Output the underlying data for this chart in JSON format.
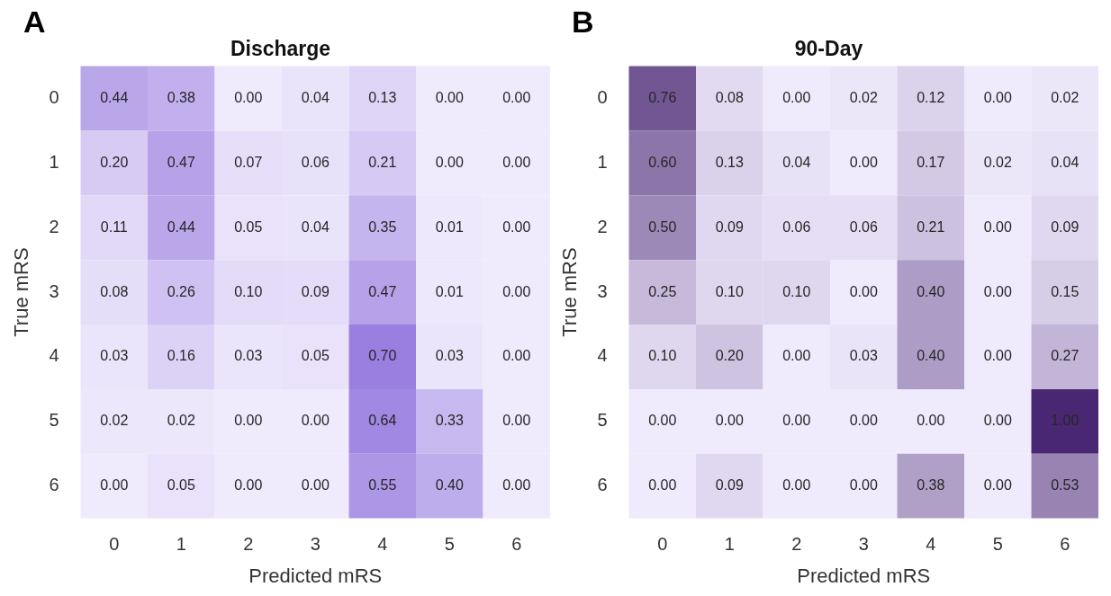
{
  "chart_data": [
    {
      "type": "heatmap",
      "title": "Discharge",
      "xlabel": "Predicted mRS",
      "ylabel": "True mRS",
      "annotations": [
        "A"
      ],
      "color": "#9a7fe0",
      "categories": [
        "0",
        "1",
        "2",
        "3",
        "4",
        "5",
        "6"
      ],
      "y_categories": [
        "0",
        "1",
        "2",
        "3",
        "4",
        "5",
        "6"
      ],
      "cells": [
        [
          0.44,
          0.38,
          0.0,
          0.04,
          0.13,
          0.0,
          0.0
        ],
        [
          0.2,
          0.47,
          0.07,
          0.06,
          0.21,
          0.0,
          0.0
        ],
        [
          0.11,
          0.44,
          0.05,
          0.04,
          0.35,
          0.01,
          0.0
        ],
        [
          0.08,
          0.26,
          0.1,
          0.09,
          0.47,
          0.01,
          0.0
        ],
        [
          0.03,
          0.16,
          0.03,
          0.05,
          0.7,
          0.03,
          0.0
        ],
        [
          0.02,
          0.02,
          0.0,
          0.0,
          0.64,
          0.33,
          0.0
        ],
        [
          0.0,
          0.05,
          0.0,
          0.0,
          0.55,
          0.4,
          0.0
        ]
      ],
      "cell_labels": [
        [
          "0.44",
          "0.38",
          "0.00",
          "0.04",
          "0.13",
          "0.00",
          "0.00"
        ],
        [
          "0.20",
          "0.47",
          "0.07",
          "0.06",
          "0.21",
          "0.00",
          "0.00"
        ],
        [
          "0.11",
          "0.44",
          "0.05",
          "0.04",
          "0.35",
          "0.01",
          "0.00"
        ],
        [
          "0.08",
          "0.26",
          "0.10",
          "0.09",
          "0.47",
          "0.01",
          "0.00"
        ],
        [
          "0.03",
          "0.16",
          "0.03",
          "0.05",
          "0.70",
          "0.03",
          "0.00"
        ],
        [
          "0.02",
          "0.02",
          "0.00",
          "0.00",
          "0.64",
          "0.33",
          "0.00"
        ],
        [
          "0.00",
          "0.05",
          "0.00",
          "0.00",
          "0.55",
          "0.40",
          "0.00"
        ]
      ]
    },
    {
      "type": "heatmap",
      "title": "90-Day",
      "xlabel": "Predicted mRS",
      "ylabel": "True mRS",
      "annotations": [
        "B"
      ],
      "color": "#4a2772",
      "categories": [
        "0",
        "1",
        "2",
        "3",
        "4",
        "5",
        "6"
      ],
      "y_categories": [
        "0",
        "1",
        "2",
        "3",
        "4",
        "5",
        "6"
      ],
      "cells": [
        [
          0.76,
          0.08,
          0.0,
          0.02,
          0.12,
          0.0,
          0.02
        ],
        [
          0.6,
          0.13,
          0.04,
          0.0,
          0.17,
          0.02,
          0.04
        ],
        [
          0.5,
          0.09,
          0.06,
          0.06,
          0.21,
          0.0,
          0.09
        ],
        [
          0.25,
          0.1,
          0.1,
          0.0,
          0.4,
          0.0,
          0.15
        ],
        [
          0.1,
          0.2,
          0.0,
          0.03,
          0.4,
          0.0,
          0.27
        ],
        [
          0.0,
          0.0,
          0.0,
          0.0,
          0.0,
          0.0,
          1.0
        ],
        [
          0.0,
          0.09,
          0.0,
          0.0,
          0.38,
          0.0,
          0.53
        ]
      ],
      "cell_labels": [
        [
          "0.76",
          "0.08",
          "0.00",
          "0.02",
          "0.12",
          "0.00",
          "0.02"
        ],
        [
          "0.60",
          "0.13",
          "0.04",
          "0.00",
          "0.17",
          "0.02",
          "0.04"
        ],
        [
          "0.50",
          "0.09",
          "0.06",
          "0.06",
          "0.21",
          "0.00",
          "0.09"
        ],
        [
          "0.25",
          "0.10",
          "0.10",
          "0.00",
          "0.40",
          "0.00",
          "0.15"
        ],
        [
          "0.10",
          "0.20",
          "0.00",
          "0.03",
          "0.40",
          "0.00",
          "0.27"
        ],
        [
          "0.00",
          "0.00",
          "0.00",
          "0.00",
          "0.00",
          "0.00",
          "1.00"
        ],
        [
          "0.00",
          "0.09",
          "0.00",
          "0.00",
          "0.38",
          "0.00",
          "0.53"
        ]
      ]
    }
  ]
}
